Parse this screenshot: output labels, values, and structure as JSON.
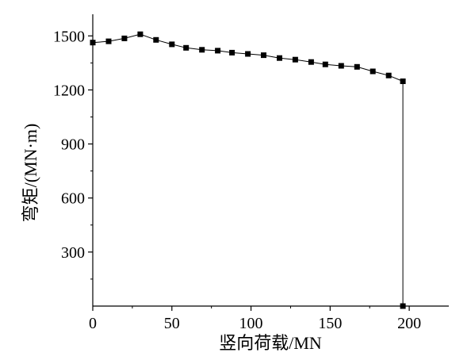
{
  "chart_data": {
    "type": "line",
    "xlabel": "竖向荷载/MN",
    "ylabel": "弯矩/(MN·m)",
    "xlim": [
      0,
      225
    ],
    "ylim": [
      0,
      1620
    ],
    "xticks": [
      0,
      50,
      100,
      150,
      200
    ],
    "yticks": [
      300,
      600,
      900,
      1200,
      1500
    ],
    "grid": false,
    "series": [
      {
        "marker": "square",
        "color": "#000000",
        "x": [
          0,
          10,
          20,
          30,
          40,
          50,
          59,
          69,
          79,
          88,
          98,
          108,
          118,
          128,
          138,
          147,
          157,
          167,
          177,
          187,
          196,
          196
        ],
        "y": [
          1463,
          1470,
          1486,
          1509,
          1478,
          1453,
          1434,
          1423,
          1418,
          1407,
          1400,
          1393,
          1377,
          1368,
          1355,
          1342,
          1334,
          1328,
          1303,
          1280,
          1248,
          0
        ]
      }
    ]
  }
}
